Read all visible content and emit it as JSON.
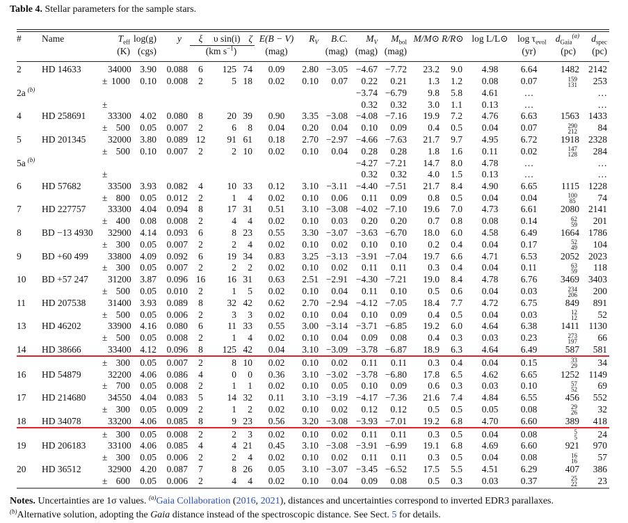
{
  "caption": {
    "label": "Table 4.",
    "text": " Stellar parameters for the sample stars."
  },
  "header": {
    "num": "#",
    "name": "Name",
    "teff": {
      "main": "T",
      "sub": "eff",
      "unit": "(K)"
    },
    "logg": {
      "main": "log(g)",
      "unit": "(cgs)"
    },
    "y": "y",
    "xi": "ξ",
    "vsini": "υ sin(i)",
    "zeta": "ζ",
    "vel_unit_main": "(km s",
    "vel_unit_sup": "−1",
    "vel_unit_end": ")",
    "ebv": {
      "main": "E(B − V)",
      "unit": "(mag)"
    },
    "rv": {
      "main": "R",
      "sub": "V"
    },
    "bc": {
      "main": "B.C.",
      "unit": "(mag)"
    },
    "mv": {
      "main": "M",
      "sub": "V",
      "unit": "(mag)"
    },
    "mbol": {
      "main": "M",
      "sub": "bol",
      "unit": "(mag)"
    },
    "mass": "M/M⊙",
    "radius": "R/R⊙",
    "logl": "log L/L⊙",
    "logtau": {
      "main": "log τ",
      "sub": "evol",
      "unit": "(yr)"
    },
    "dgaia": {
      "main": "d",
      "sub": "Gaia",
      "sup": "(a)",
      "unit": "(pc)"
    },
    "dspec": {
      "main": "d",
      "sub": "spec",
      "unit": "(pc)"
    }
  },
  "rows": [
    {
      "c": [
        "2",
        "HD 14633",
        "",
        "34000",
        "3.90",
        "0.088",
        "6",
        "125",
        "74",
        "0.09",
        "2.80",
        "−3.05",
        "−4.67",
        "−7.72",
        "23.2",
        "9.0",
        "4.98",
        "6.64",
        "1482",
        "2142"
      ]
    },
    {
      "c": [
        "",
        "",
        "±",
        "1000",
        "0.10",
        "0.008",
        "2",
        "5",
        "18",
        "0.02",
        "0.10",
        "0.07",
        "0.22",
        "0.21",
        "1.3",
        "1.2",
        "0.08",
        "0.07",
        "",
        "253"
      ],
      "err": [
        "159",
        "131"
      ]
    },
    {
      "c": [
        "2a",
        "",
        "",
        "",
        "",
        "",
        "",
        "",
        "",
        "",
        "",
        "",
        "−3.74",
        "−6.79",
        "9.8",
        "5.8",
        "4.61",
        "…",
        "",
        "…"
      ],
      "sup": "(b)"
    },
    {
      "c": [
        "",
        "",
        "±",
        "",
        "",
        "",
        "",
        "",
        "",
        "",
        "",
        "",
        "0.32",
        "0.32",
        "3.0",
        "1.1",
        "0.13",
        "…",
        "",
        "…"
      ]
    },
    {
      "c": [
        "4",
        "HD 258691",
        "",
        "33300",
        "4.02",
        "0.080",
        "8",
        "20",
        "39",
        "0.90",
        "3.35",
        "−3.08",
        "−4.08",
        "−7.16",
        "19.9",
        "7.2",
        "4.76",
        "6.63",
        "1563",
        "1433"
      ]
    },
    {
      "c": [
        "",
        "",
        "±",
        "500",
        "0.05",
        "0.007",
        "2",
        "6",
        "8",
        "0.04",
        "0.20",
        "0.04",
        "0.10",
        "0.09",
        "0.4",
        "0.5",
        "0.04",
        "0.07",
        "",
        "84"
      ],
      "err": [
        "290",
        "212"
      ]
    },
    {
      "c": [
        "5",
        "HD 201345",
        "",
        "32000",
        "3.80",
        "0.089",
        "12",
        "91",
        "61",
        "0.18",
        "2.70",
        "−2.97",
        "−4.66",
        "−7.63",
        "21.7",
        "9.7",
        "4.95",
        "6.72",
        "1918",
        "2328"
      ]
    },
    {
      "c": [
        "",
        "",
        "±",
        "500",
        "0.10",
        "0.007",
        "2",
        "2",
        "10",
        "0.02",
        "0.10",
        "0.04",
        "0.28",
        "0.28",
        "1.8",
        "1.6",
        "0.11",
        "0.02",
        "",
        "284"
      ],
      "err": [
        "147",
        "128"
      ]
    },
    {
      "c": [
        "5a",
        "",
        "",
        "",
        "",
        "",
        "",
        "",
        "",
        "",
        "",
        "",
        "−4.27",
        "−7.21",
        "14.7",
        "8.0",
        "4.78",
        "…",
        "",
        "…"
      ],
      "sup": "(b)"
    },
    {
      "c": [
        "",
        "",
        "±",
        "",
        "",
        "",
        "",
        "",
        "",
        "",
        "",
        "",
        "0.32",
        "0.32",
        "4.0",
        "1.5",
        "0.13",
        "…",
        "",
        "…"
      ]
    },
    {
      "c": [
        "6",
        "HD 57682",
        "",
        "33500",
        "3.93",
        "0.082",
        "4",
        "10",
        "33",
        "0.12",
        "3.10",
        "−3.11",
        "−4.40",
        "−7.51",
        "21.7",
        "8.4",
        "4.90",
        "6.65",
        "1115",
        "1228"
      ]
    },
    {
      "c": [
        "",
        "",
        "±",
        "800",
        "0.05",
        "0.012",
        "2",
        "1",
        "4",
        "0.02",
        "0.10",
        "0.06",
        "0.11",
        "0.09",
        "0.8",
        "0.5",
        "0.04",
        "0.04",
        "",
        "74"
      ],
      "err": [
        "100",
        "85"
      ]
    },
    {
      "c": [
        "7",
        "HD 227757",
        "",
        "33300",
        "4.04",
        "0.094",
        "8",
        "17",
        "31",
        "0.51",
        "3.10",
        "−3.08",
        "−4.02",
        "−7.10",
        "19.6",
        "7.0",
        "4.73",
        "6.61",
        "2080",
        "2141"
      ]
    },
    {
      "c": [
        "",
        "",
        "±",
        "400",
        "0.08",
        "0.008",
        "2",
        "4",
        "4",
        "0.02",
        "0.10",
        "0.03",
        "0.20",
        "0.20",
        "0.7",
        "0.8",
        "0.08",
        "0.14",
        "",
        "201"
      ],
      "err": [
        "62",
        "59"
      ]
    },
    {
      "c": [
        "8",
        "BD −13 4930",
        "",
        "32900",
        "4.14",
        "0.093",
        "6",
        "8",
        "23",
        "0.55",
        "3.30",
        "−3.07",
        "−3.63",
        "−6.70",
        "18.0",
        "6.0",
        "4.58",
        "6.49",
        "1664",
        "1786"
      ]
    },
    {
      "c": [
        "",
        "",
        "±",
        "300",
        "0.05",
        "0.007",
        "2",
        "2",
        "4",
        "0.02",
        "0.10",
        "0.02",
        "0.10",
        "0.10",
        "0.2",
        "0.4",
        "0.04",
        "0.17",
        "",
        "104"
      ],
      "err": [
        "52",
        "49"
      ]
    },
    {
      "c": [
        "9",
        "BD +60 499",
        "",
        "33800",
        "4.09",
        "0.092",
        "6",
        "19",
        "34",
        "0.83",
        "3.25",
        "−3.13",
        "−3.91",
        "−7.04",
        "19.7",
        "6.6",
        "4.71",
        "6.53",
        "2052",
        "2023"
      ]
    },
    {
      "c": [
        "",
        "",
        "±",
        "300",
        "0.05",
        "0.007",
        "2",
        "2",
        "2",
        "0.02",
        "0.10",
        "0.02",
        "0.11",
        "0.11",
        "0.3",
        "0.4",
        "0.04",
        "0.11",
        "",
        "118"
      ],
      "err": [
        "63",
        "59"
      ]
    },
    {
      "c": [
        "10",
        "BD +57 247",
        "",
        "31200",
        "3.87",
        "0.096",
        "16",
        "16",
        "31",
        "0.63",
        "2.51",
        "−2.91",
        "−4.30",
        "−7.21",
        "19.0",
        "8.4",
        "4.78",
        "6.76",
        "3469",
        "3403"
      ]
    },
    {
      "c": [
        "",
        "",
        "±",
        "500",
        "0.05",
        "0.010",
        "2",
        "1",
        "5",
        "0.02",
        "0.10",
        "0.04",
        "0.11",
        "0.10",
        "0.5",
        "0.6",
        "0.04",
        "0.03",
        "",
        "200"
      ],
      "err": [
        "234",
        "206"
      ]
    },
    {
      "c": [
        "11",
        "HD 207538",
        "",
        "31400",
        "3.93",
        "0.089",
        "8",
        "32",
        "42",
        "0.62",
        "2.70",
        "−2.94",
        "−4.12",
        "−7.05",
        "18.4",
        "7.7",
        "4.72",
        "6.75",
        "849",
        "891"
      ]
    },
    {
      "c": [
        "",
        "",
        "±",
        "500",
        "0.05",
        "0.006",
        "2",
        "3",
        "3",
        "0.02",
        "0.10",
        "0.04",
        "0.10",
        "0.09",
        "0.4",
        "0.5",
        "0.04",
        "0.03",
        "",
        "52"
      ],
      "err": [
        "12",
        "12"
      ]
    },
    {
      "c": [
        "13",
        "HD 46202",
        "",
        "33900",
        "4.16",
        "0.080",
        "6",
        "11",
        "33",
        "0.55",
        "3.00",
        "−3.14",
        "−3.71",
        "−6.85",
        "19.2",
        "6.0",
        "4.64",
        "6.38",
        "1411",
        "1130"
      ]
    },
    {
      "c": [
        "",
        "",
        "±",
        "500",
        "0.05",
        "0.008",
        "2",
        "1",
        "4",
        "0.02",
        "0.10",
        "0.04",
        "0.09",
        "0.08",
        "0.4",
        "0.3",
        "0.03",
        "0.23",
        "",
        "66"
      ],
      "err": [
        "273",
        "197"
      ]
    },
    {
      "c": [
        "14",
        "HD 38666",
        "",
        "33400",
        "4.12",
        "0.096",
        "8",
        "125",
        "42",
        "0.04",
        "3.10",
        "−3.09",
        "−3.78",
        "−6.87",
        "18.9",
        "6.3",
        "4.64",
        "6.49",
        "587",
        "581"
      ]
    },
    {
      "c": [
        "",
        "",
        "±",
        "300",
        "0.05",
        "0.007",
        "2",
        "8",
        "10",
        "0.02",
        "0.10",
        "0.02",
        "0.11",
        "0.11",
        "0.3",
        "0.4",
        "0.04",
        "0.15",
        "",
        "34"
      ],
      "err": [
        "33",
        "29"
      ]
    },
    {
      "c": [
        "16",
        "HD 54879",
        "",
        "32200",
        "4.06",
        "0.086",
        "4",
        "0",
        "0",
        "0.36",
        "3.10",
        "−3.02",
        "−3.78",
        "−6.80",
        "17.8",
        "6.5",
        "4.62",
        "6.65",
        "1252",
        "1149"
      ]
    },
    {
      "c": [
        "",
        "",
        "±",
        "700",
        "0.05",
        "0.008",
        "2",
        "1",
        "1",
        "0.02",
        "0.10",
        "0.05",
        "0.10",
        "0.09",
        "0.6",
        "0.3",
        "0.03",
        "0.10",
        "",
        "69"
      ],
      "err": [
        "57",
        "52"
      ]
    },
    {
      "c": [
        "17",
        "HD 214680",
        "",
        "34550",
        "4.04",
        "0.083",
        "5",
        "14",
        "32",
        "0.11",
        "3.10",
        "−3.19",
        "−4.17",
        "−7.36",
        "21.6",
        "7.4",
        "4.84",
        "6.55",
        "456",
        "552"
      ]
    },
    {
      "c": [
        "",
        "",
        "±",
        "300",
        "0.05",
        "0.009",
        "2",
        "1",
        "2",
        "0.02",
        "0.10",
        "0.02",
        "0.12",
        "0.12",
        "0.5",
        "0.5",
        "0.05",
        "0.08",
        "",
        "32"
      ],
      "err": [
        "29",
        "26"
      ]
    },
    {
      "c": [
        "18",
        "HD 34078",
        "",
        "33200",
        "4.06",
        "0.085",
        "8",
        "9",
        "23",
        "0.56",
        "3.20",
        "−3.08",
        "−3.93",
        "−7.01",
        "19.2",
        "6.8",
        "4.70",
        "6.60",
        "389",
        "418"
      ]
    },
    {
      "c": [
        "",
        "",
        "±",
        "300",
        "0.05",
        "0.008",
        "2",
        "2",
        "3",
        "0.02",
        "0.10",
        "0.02",
        "0.11",
        "0.11",
        "0.3",
        "0.5",
        "0.04",
        "0.08",
        "",
        "24"
      ],
      "err": [
        "5",
        "5"
      ]
    },
    {
      "c": [
        "19",
        "HD 206183",
        "",
        "33100",
        "4.06",
        "0.085",
        "4",
        "4",
        "21",
        "0.45",
        "3.10",
        "−3.08",
        "−3.91",
        "−6.99",
        "19.1",
        "6.8",
        "4.69",
        "6.60",
        "921",
        "970"
      ]
    },
    {
      "c": [
        "",
        "",
        "±",
        "300",
        "0.05",
        "0.006",
        "2",
        "2",
        "4",
        "0.02",
        "0.10",
        "0.02",
        "0.11",
        "0.11",
        "0.3",
        "0.5",
        "0.04",
        "0.08",
        "",
        "57"
      ],
      "err": [
        "16",
        "16"
      ]
    },
    {
      "c": [
        "20",
        "HD 36512",
        "",
        "32900",
        "4.20",
        "0.087",
        "7",
        "8",
        "26",
        "0.05",
        "3.10",
        "−3.07",
        "−3.45",
        "−6.52",
        "17.5",
        "5.5",
        "4.51",
        "6.29",
        "407",
        "386"
      ]
    },
    {
      "c": [
        "",
        "",
        "±",
        "600",
        "0.05",
        "0.006",
        "2",
        "4",
        "4",
        "0.02",
        "0.10",
        "0.04",
        "0.09",
        "0.08",
        "0.5",
        "0.3",
        "0.03",
        "0.37",
        "",
        "23"
      ],
      "err": [
        "25",
        "22"
      ]
    }
  ],
  "notes": {
    "label": "Notes.",
    "t1": " Uncertainties are 1σ values. ",
    "a_mark": "(a)",
    "link1": "Gaia Collaboration",
    "t2": " (",
    "link2": "2016",
    "t3": ", ",
    "link3": "2021",
    "t4": "), distances and uncertainties correspond to inverted EDR3 parallaxes.",
    "b_mark": "(b)",
    "t5": "Alternative solution, adopting the ",
    "gaia": "Gaia",
    "t6": " distance instead of the spectroscopic distance. See Sect. ",
    "link4": "5",
    "t7": " for details."
  },
  "colors": {
    "highlight_line": "#e8202a",
    "link": "#2a4fbf"
  }
}
